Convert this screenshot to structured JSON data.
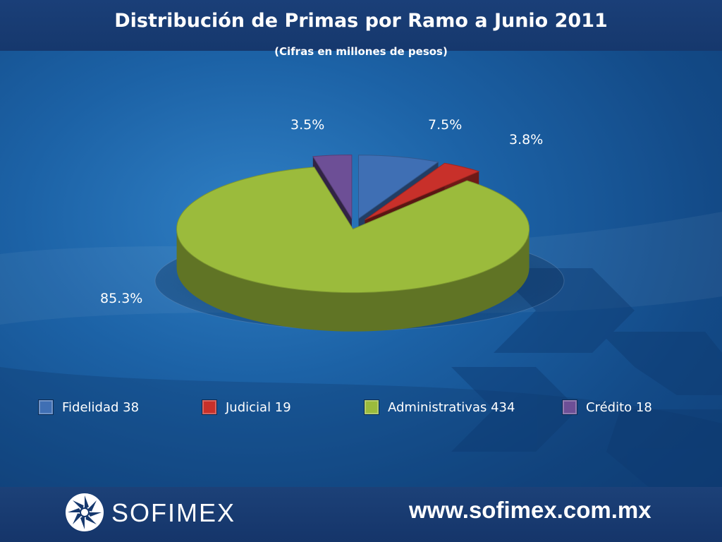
{
  "header": {
    "title": "Distribución de Primas por Ramo a Junio 2011",
    "subtitle": "(Cifras en millones de pesos)"
  },
  "chart_data": {
    "type": "pie",
    "title": "Distribución de Primas por Ramo a Junio 2011",
    "subtitle": "(Cifras en millones de pesos)",
    "categories": [
      "Fidelidad",
      "Judicial",
      "Administrativas",
      "Crédito"
    ],
    "values": [
      38,
      19,
      434,
      18
    ],
    "percent_labels": [
      "7.5%",
      "3.8%",
      "85.3%",
      "3.5%"
    ],
    "legend_labels": [
      "Fidelidad 38",
      "Judicial 19",
      "Administrativas 434",
      "Crédito 18"
    ],
    "colors": [
      "#3f6fb4",
      "#c8302a",
      "#9bbb3c",
      "#6d4f96"
    ],
    "legend_position": "bottom"
  },
  "footer": {
    "brand": "SOFIMEX",
    "url": "www.sofimex.com.mx"
  }
}
